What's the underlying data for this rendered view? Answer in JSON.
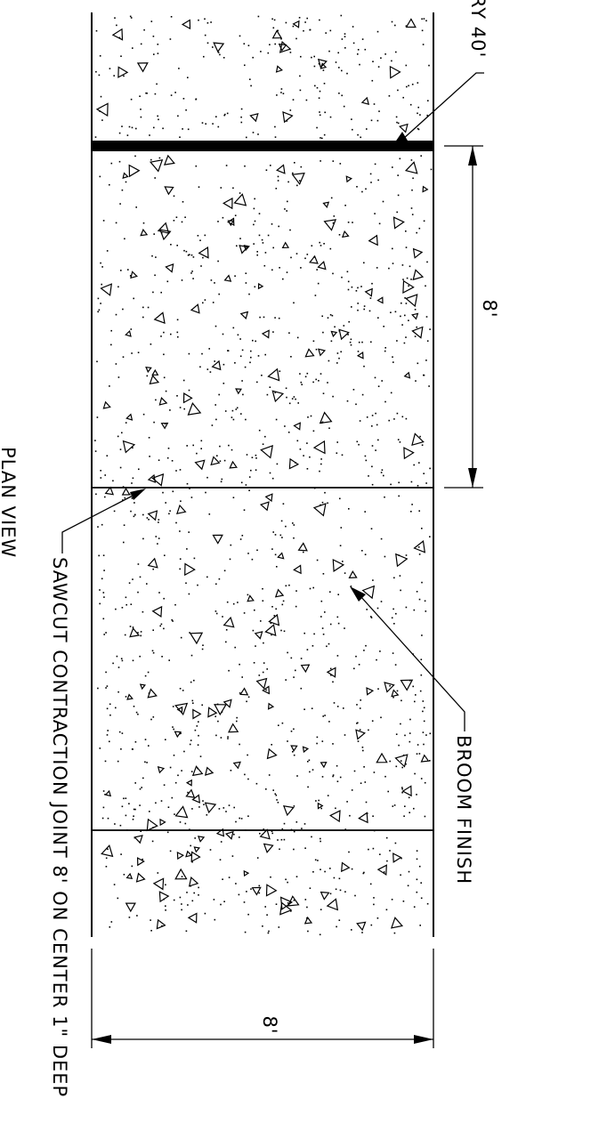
{
  "labels": {
    "plan_view": "PLAN VIEW",
    "sawcut_note": "SAWCUT CONTRACTION JOINT 8' ON CENTER 1\" DEEP",
    "broom_finish": "BROOM FINISH",
    "top_note_fragment": "RY 40'"
  },
  "dimensions": {
    "panel_length": "8'",
    "slab_width": "8'"
  },
  "colors": {
    "line": "#000000",
    "background": "#ffffff"
  }
}
